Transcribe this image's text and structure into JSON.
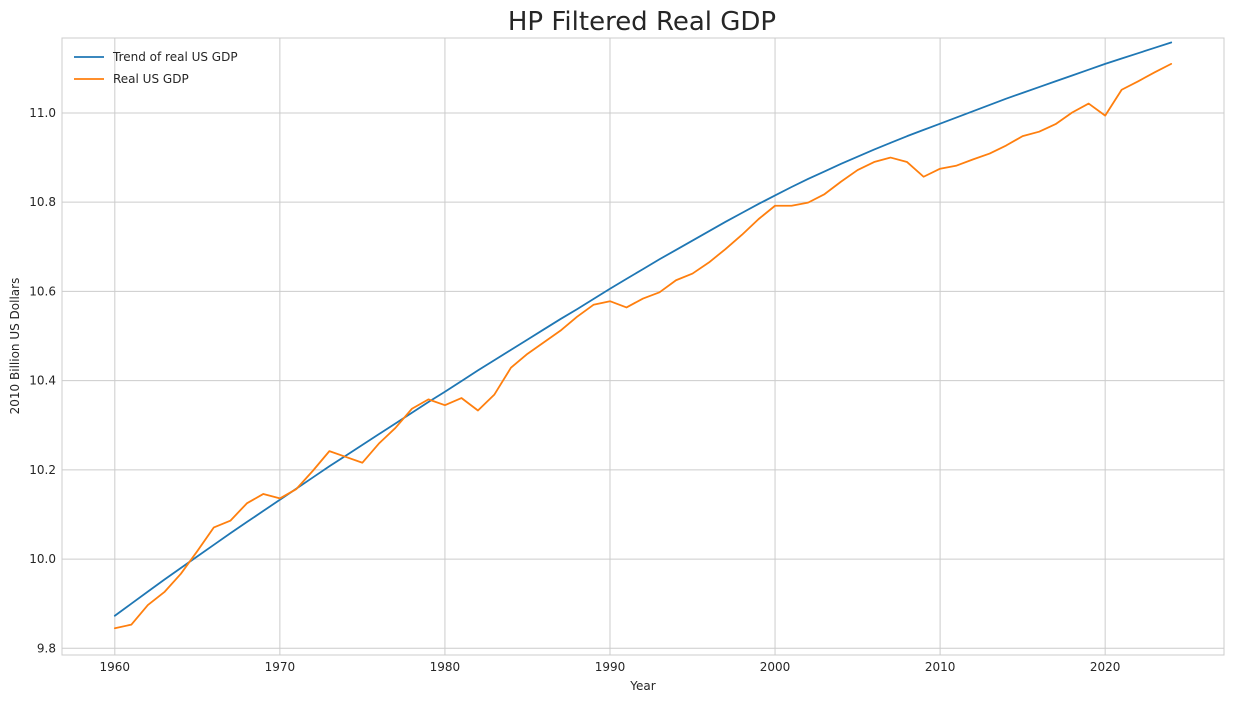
{
  "chart_data": {
    "type": "line",
    "title": "HP Filtered Real GDP",
    "xlabel": "Year",
    "ylabel": "2010 Billion US Dollars",
    "xlim": [
      1956.8,
      2027.2
    ],
    "ylim": [
      9.785,
      11.168
    ],
    "xticks": [
      1960,
      1970,
      1980,
      1990,
      2000,
      2010,
      2020
    ],
    "yticks": [
      9.8,
      10.0,
      10.2,
      10.4,
      10.6,
      10.8,
      11.0
    ],
    "ytick_labels": [
      "9.8",
      "10.0",
      "10.2",
      "10.4",
      "10.6",
      "10.8",
      "11.0"
    ],
    "grid": true,
    "legend_position": "top-left",
    "x": [
      1960,
      1961,
      1962,
      1963,
      1964,
      1965,
      1966,
      1967,
      1968,
      1969,
      1970,
      1971,
      1972,
      1973,
      1974,
      1975,
      1976,
      1977,
      1978,
      1979,
      1980,
      1981,
      1982,
      1983,
      1984,
      1985,
      1986,
      1987,
      1988,
      1989,
      1990,
      1991,
      1992,
      1993,
      1994,
      1995,
      1996,
      1997,
      1998,
      1999,
      2000,
      2001,
      2002,
      2003,
      2004,
      2005,
      2006,
      2007,
      2008,
      2009,
      2010,
      2011,
      2012,
      2013,
      2014,
      2015,
      2016,
      2017,
      2018,
      2019,
      2020,
      2021,
      2022,
      2023,
      2024
    ],
    "series": [
      {
        "name": "Trend of real US GDP",
        "color": "#1f77b4",
        "values": [
          9.873,
          9.9,
          9.927,
          9.954,
          9.98,
          10.006,
          10.032,
          10.058,
          10.083,
          10.108,
          10.133,
          10.158,
          10.183,
          10.208,
          10.232,
          10.256,
          10.28,
          10.304,
          10.328,
          10.352,
          10.375,
          10.399,
          10.423,
          10.446,
          10.469,
          10.492,
          10.515,
          10.538,
          10.56,
          10.583,
          10.606,
          10.628,
          10.65,
          10.672,
          10.693,
          10.714,
          10.735,
          10.756,
          10.776,
          10.796,
          10.815,
          10.834,
          10.852,
          10.869,
          10.886,
          10.902,
          10.918,
          10.933,
          10.948,
          10.962,
          10.976,
          10.99,
          11.004,
          11.018,
          11.032,
          11.045,
          11.058,
          11.071,
          11.084,
          11.097,
          11.11,
          11.122,
          11.134,
          11.146,
          11.158
        ]
      },
      {
        "name": "Real US GDP",
        "color": "#ff7f0e",
        "values": [
          9.845,
          9.853,
          9.897,
          9.926,
          9.967,
          10.018,
          10.071,
          10.086,
          10.125,
          10.146,
          10.136,
          10.157,
          10.198,
          10.242,
          10.229,
          10.216,
          10.259,
          10.294,
          10.337,
          10.358,
          10.345,
          10.361,
          10.333,
          10.369,
          10.429,
          10.46,
          10.486,
          10.512,
          10.543,
          10.57,
          10.578,
          10.564,
          10.584,
          10.598,
          10.625,
          10.64,
          10.665,
          10.695,
          10.727,
          10.762,
          10.792,
          10.792,
          10.799,
          10.818,
          10.846,
          10.872,
          10.89,
          10.9,
          10.89,
          10.857,
          10.875,
          10.882,
          10.896,
          10.909,
          10.927,
          10.948,
          10.958,
          10.975,
          11.001,
          11.021,
          10.994,
          11.052,
          11.071,
          11.091,
          11.11
        ]
      }
    ]
  }
}
